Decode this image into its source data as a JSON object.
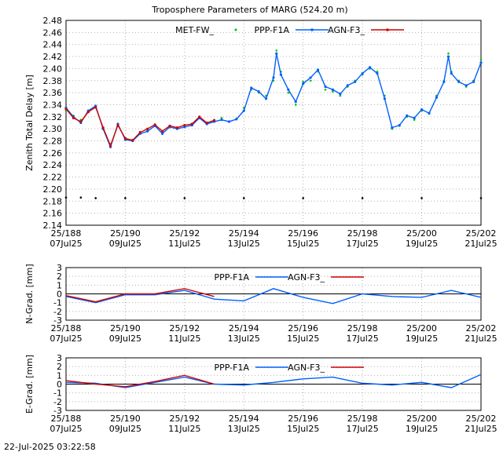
{
  "figure": {
    "title": "Troposphere Parameters of MARG (524.20 m)",
    "timestamp": "22-Jul-2025 03:22:58"
  },
  "chart_data": [
    {
      "type": "line",
      "ylabel": "Zenith Total Delay [m]",
      "xlim": [
        188,
        202
      ],
      "ylim": [
        2.14,
        2.48
      ],
      "yticks": [
        "2.48",
        "2.46",
        "2.44",
        "2.42",
        "2.40",
        "2.38",
        "2.36",
        "2.34",
        "2.32",
        "2.30",
        "2.28",
        "2.26",
        "2.24",
        "2.22",
        "2.20",
        "2.18",
        "2.16",
        "2.14"
      ],
      "xticks": [
        {
          "doy": 188,
          "top": "25/188",
          "bottom": "07Jul25"
        },
        {
          "doy": 190,
          "top": "25/190",
          "bottom": "09Jul25"
        },
        {
          "doy": 192,
          "top": "25/192",
          "bottom": "11Jul25"
        },
        {
          "doy": 194,
          "top": "25/194",
          "bottom": "13Jul25"
        },
        {
          "doy": 196,
          "top": "25/196",
          "bottom": "15Jul25"
        },
        {
          "doy": 198,
          "top": "25/198",
          "bottom": "17Jul25"
        },
        {
          "doy": 200,
          "top": "25/200",
          "bottom": "19Jul25"
        },
        {
          "doy": 202,
          "top": "25/202",
          "bottom": "21Jul25"
        }
      ],
      "grid": true,
      "legend": "top",
      "series": [
        {
          "name": "MET-FW_",
          "color": "#00c000",
          "style": "dots",
          "x": [
            188,
            188.25,
            188.5,
            188.75,
            189,
            189.25,
            189.5,
            189.75,
            190,
            190.25,
            190.5,
            190.75,
            191,
            191.25,
            191.5,
            191.75,
            192,
            192.25,
            192.5,
            192.75,
            193,
            193.25,
            193.5,
            193.75,
            194,
            194.25,
            194.5,
            194.75,
            195,
            195.1,
            195.25,
            195.5,
            195.75,
            196,
            196.25,
            196.5,
            196.75,
            197,
            197.25,
            197.5,
            197.75,
            198,
            198.25,
            198.5,
            198.75,
            199,
            199.25,
            199.5,
            199.75,
            200,
            200.25,
            200.5,
            200.75,
            200.9,
            201,
            201.25,
            201.5,
            201.75,
            202
          ],
          "y": [
            2.33,
            2.322,
            2.315,
            2.33,
            2.335,
            2.3,
            2.275,
            2.305,
            2.285,
            2.282,
            2.295,
            2.298,
            2.306,
            2.294,
            2.305,
            2.302,
            2.305,
            2.308,
            2.32,
            2.31,
            2.315,
            2.318,
            2.312,
            2.317,
            2.335,
            2.365,
            2.36,
            2.355,
            2.38,
            2.43,
            2.395,
            2.36,
            2.34,
            2.378,
            2.38,
            2.395,
            2.365,
            2.362,
            2.355,
            2.37,
            2.38,
            2.39,
            2.4,
            2.395,
            2.355,
            2.3,
            2.305,
            2.32,
            2.315,
            2.33,
            2.325,
            2.355,
            2.38,
            2.425,
            2.395,
            2.38,
            2.37,
            2.38,
            2.415
          ]
        },
        {
          "name": "PPP-F1A",
          "color": "#0060ff",
          "style": "line-points",
          "x": [
            188,
            188.25,
            188.5,
            188.75,
            189,
            189.25,
            189.5,
            189.75,
            190,
            190.25,
            190.5,
            190.75,
            191,
            191.25,
            191.5,
            191.75,
            192,
            192.25,
            192.5,
            192.75,
            193,
            193.25,
            193.5,
            193.75,
            194,
            194.25,
            194.5,
            194.75,
            195,
            195.1,
            195.25,
            195.5,
            195.75,
            196,
            196.25,
            196.5,
            196.75,
            197,
            197.25,
            197.5,
            197.75,
            198,
            198.25,
            198.5,
            198.75,
            199,
            199.25,
            199.5,
            199.75,
            200,
            200.25,
            200.5,
            200.75,
            200.9,
            201,
            201.25,
            201.5,
            201.75,
            202
          ],
          "y": [
            2.335,
            2.32,
            2.31,
            2.33,
            2.338,
            2.3,
            2.27,
            2.308,
            2.282,
            2.28,
            2.292,
            2.296,
            2.305,
            2.292,
            2.303,
            2.3,
            2.303,
            2.306,
            2.318,
            2.308,
            2.312,
            2.315,
            2.312,
            2.316,
            2.33,
            2.368,
            2.362,
            2.35,
            2.385,
            2.425,
            2.39,
            2.365,
            2.345,
            2.375,
            2.385,
            2.398,
            2.37,
            2.365,
            2.358,
            2.372,
            2.378,
            2.392,
            2.402,
            2.392,
            2.35,
            2.302,
            2.306,
            2.322,
            2.318,
            2.332,
            2.326,
            2.352,
            2.378,
            2.42,
            2.392,
            2.378,
            2.372,
            2.378,
            2.41
          ]
        },
        {
          "name": "AGN-F3_",
          "color": "#d00000",
          "style": "line-points",
          "x": [
            188,
            188.25,
            188.5,
            188.75,
            189,
            189.25,
            189.5,
            189.75,
            190,
            190.25,
            190.5,
            190.75,
            191,
            191.25,
            191.5,
            191.75,
            192,
            192.25,
            192.5,
            192.75,
            193
          ],
          "y": [
            2.333,
            2.318,
            2.312,
            2.328,
            2.336,
            2.302,
            2.272,
            2.306,
            2.284,
            2.281,
            2.294,
            2.3,
            2.307,
            2.296,
            2.305,
            2.302,
            2.306,
            2.308,
            2.32,
            2.31,
            2.314
          ]
        },
        {
          "name": "",
          "color": "#000000",
          "style": "dots",
          "x": [
            188,
            188.5,
            189,
            190,
            192,
            194,
            196,
            198,
            200,
            202
          ],
          "y": [
            2.186,
            2.186,
            2.185,
            2.185,
            2.185,
            2.185,
            2.185,
            2.185,
            2.185,
            2.185
          ]
        }
      ]
    },
    {
      "type": "line",
      "ylabel": "N-Grad. [mm]",
      "xlim": [
        188,
        202
      ],
      "ylim": [
        -3,
        3
      ],
      "yticks": [
        "3",
        "2",
        "1",
        "0",
        "-1",
        "-2",
        "-3"
      ],
      "xticks": [
        {
          "doy": 188,
          "top": "25/188",
          "bottom": "07Jul25"
        },
        {
          "doy": 190,
          "top": "25/190",
          "bottom": "09Jul25"
        },
        {
          "doy": 192,
          "top": "25/192",
          "bottom": "11Jul25"
        },
        {
          "doy": 194,
          "top": "25/194",
          "bottom": "13Jul25"
        },
        {
          "doy": 196,
          "top": "25/196",
          "bottom": "15Jul25"
        },
        {
          "doy": 198,
          "top": "25/198",
          "bottom": "17Jul25"
        },
        {
          "doy": 200,
          "top": "25/200",
          "bottom": "19Jul25"
        },
        {
          "doy": 202,
          "top": "25/202",
          "bottom": "21Jul25"
        }
      ],
      "grid": true,
      "legend": "top",
      "series": [
        {
          "name": "PPP-F1A",
          "color": "#0060ff",
          "x": [
            188,
            189,
            190,
            191,
            192,
            193,
            194,
            195,
            196,
            197,
            198,
            199,
            200,
            201,
            202
          ],
          "y": [
            -0.3,
            -1.0,
            -0.1,
            -0.1,
            0.4,
            -0.6,
            -0.8,
            0.6,
            -0.4,
            -1.1,
            0.0,
            -0.3,
            -0.4,
            0.4,
            -0.4
          ]
        },
        {
          "name": "AGN-F3_",
          "color": "#d00000",
          "x": [
            188,
            189,
            190,
            191,
            192,
            193
          ],
          "y": [
            -0.2,
            -0.9,
            0.0,
            0.0,
            0.6,
            -0.3
          ]
        }
      ]
    },
    {
      "type": "line",
      "ylabel": "E-Grad. [mm]",
      "xlim": [
        188,
        202
      ],
      "ylim": [
        -3,
        3
      ],
      "yticks": [
        "3",
        "2",
        "1",
        "0",
        "-1",
        "-2",
        "-3"
      ],
      "xticks": [
        {
          "doy": 188,
          "top": "25/188",
          "bottom": "07Jul25"
        },
        {
          "doy": 190,
          "top": "25/190",
          "bottom": "09Jul25"
        },
        {
          "doy": 192,
          "top": "25/192",
          "bottom": "11Jul25"
        },
        {
          "doy": 194,
          "top": "25/194",
          "bottom": "13Jul25"
        },
        {
          "doy": 196,
          "top": "25/196",
          "bottom": "15Jul25"
        },
        {
          "doy": 198,
          "top": "25/198",
          "bottom": "17Jul25"
        },
        {
          "doy": 200,
          "top": "25/200",
          "bottom": "19Jul25"
        },
        {
          "doy": 202,
          "top": "25/202",
          "bottom": "21Jul25"
        }
      ],
      "grid": true,
      "legend": "top",
      "series": [
        {
          "name": "PPP-F1A",
          "color": "#0060ff",
          "x": [
            188,
            189,
            190,
            191,
            192,
            193,
            194,
            195,
            196,
            197,
            198,
            199,
            200,
            201,
            202
          ],
          "y": [
            0.2,
            0.1,
            -0.4,
            0.2,
            0.8,
            0.0,
            -0.1,
            0.2,
            0.6,
            0.8,
            0.1,
            -0.1,
            0.2,
            -0.4,
            1.1
          ]
        },
        {
          "name": "AGN-F3_",
          "color": "#d00000",
          "x": [
            188,
            189,
            190,
            191,
            192,
            193
          ],
          "y": [
            0.4,
            0.0,
            -0.3,
            0.3,
            1.0,
            0.0
          ]
        }
      ]
    }
  ]
}
